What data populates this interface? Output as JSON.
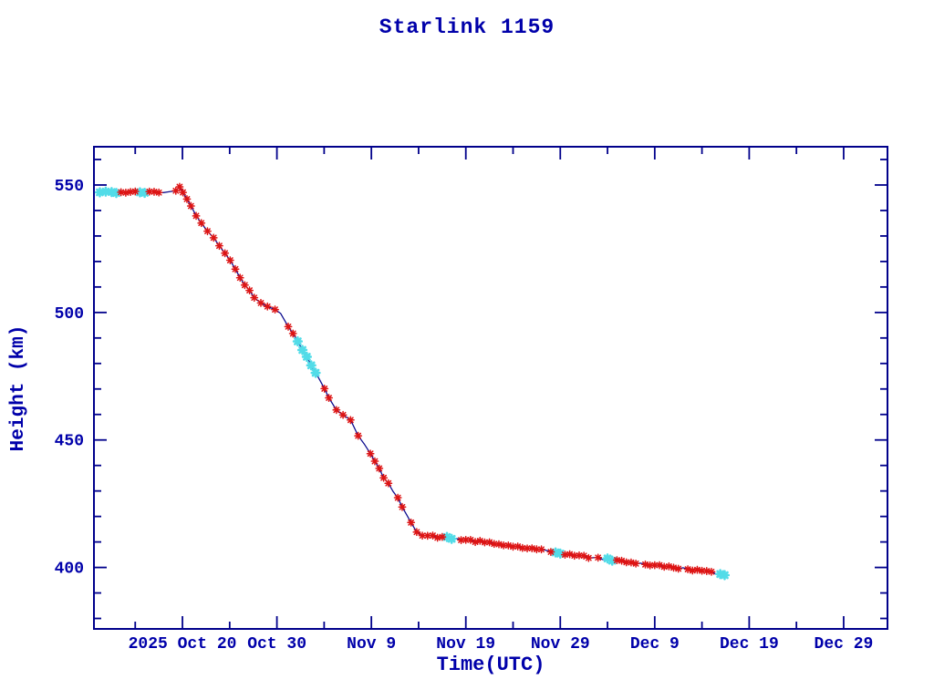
{
  "page": {
    "background": "#ffffff"
  },
  "chart_data": {
    "type": "line",
    "title": "Starlink 1159",
    "xlabel": "Time(UTC)",
    "ylabel": "Height (km)",
    "grid": false,
    "legend": "none",
    "colors": {
      "axis": "#00008b",
      "text": "#0000aa",
      "line": "#0d0d8f",
      "marker_red": "#dd1414",
      "marker_cyan": "#52dce8",
      "background": "#ffffff"
    },
    "axes": {
      "x": {
        "epoch_day0": "2025-10-11",
        "min_day": -0.37,
        "max_day": 83.64,
        "major_ticks": [
          {
            "day": 9,
            "label": "2025 Oct 20"
          },
          {
            "day": 19,
            "label": "Oct 30"
          },
          {
            "day": 29,
            "label": "Nov  9"
          },
          {
            "day": 39,
            "label": "Nov 19"
          },
          {
            "day": 49,
            "label": "Nov 29"
          },
          {
            "day": 59,
            "label": "Dec  9"
          },
          {
            "day": 69,
            "label": "Dec 19"
          },
          {
            "day": 79,
            "label": "Dec 29"
          }
        ],
        "minor_tick_days": [
          4,
          14,
          24,
          34,
          44,
          54,
          64,
          74
        ]
      },
      "y": {
        "min": 375.9,
        "max": 565.0,
        "unit": "km",
        "major_ticks": [
          400,
          450,
          500,
          550
        ],
        "minor_ticks": [
          380,
          390,
          410,
          420,
          430,
          440,
          460,
          470,
          480,
          490,
          510,
          520,
          530,
          540,
          560
        ]
      }
    },
    "series": [
      {
        "name": "orbital-height",
        "points_format": [
          "day_offset_from_epoch",
          "height_km"
        ],
        "points": [
          [
            -0.37,
            547.2
          ],
          [
            1.5,
            547.1
          ],
          [
            3.5,
            547.2
          ],
          [
            5.5,
            547.1
          ],
          [
            7.5,
            547.3
          ],
          [
            8.3,
            547.6
          ],
          [
            8.7,
            549.2
          ],
          [
            9.05,
            547.5
          ],
          [
            9.9,
            541.5
          ],
          [
            11.0,
            535.0
          ],
          [
            12.3,
            529.5
          ],
          [
            13.5,
            523.5
          ],
          [
            14.6,
            517.0
          ],
          [
            15.6,
            511.0
          ],
          [
            16.6,
            505.8
          ],
          [
            17.3,
            503.5
          ],
          [
            18.0,
            502.5
          ],
          [
            18.8,
            501.2
          ],
          [
            19.4,
            500.0
          ],
          [
            20.2,
            494.8
          ],
          [
            21.7,
            485.5
          ],
          [
            23.1,
            476.5
          ],
          [
            24.5,
            466.5
          ],
          [
            25.3,
            462.0
          ],
          [
            26.0,
            460.0
          ],
          [
            26.8,
            458.0
          ],
          [
            27.6,
            452.0
          ],
          [
            28.9,
            444.5
          ],
          [
            30.3,
            435.5
          ],
          [
            31.8,
            427.0
          ],
          [
            33.2,
            418.0
          ],
          [
            33.8,
            414.0
          ],
          [
            34.4,
            412.5
          ],
          [
            35.5,
            412.2
          ],
          [
            37.0,
            411.6
          ],
          [
            39.0,
            410.8
          ],
          [
            41.0,
            409.8
          ],
          [
            43.0,
            408.8
          ],
          [
            45.0,
            407.8
          ],
          [
            47.0,
            406.7
          ],
          [
            49.0,
            405.6
          ],
          [
            51.0,
            404.5
          ],
          [
            53.0,
            403.6
          ],
          [
            55.0,
            402.7
          ],
          [
            57.0,
            401.8
          ],
          [
            59.0,
            400.8
          ],
          [
            61.0,
            400.0
          ],
          [
            63.0,
            399.2
          ],
          [
            65.0,
            398.0
          ],
          [
            66.4,
            397.0
          ]
        ]
      }
    ]
  }
}
